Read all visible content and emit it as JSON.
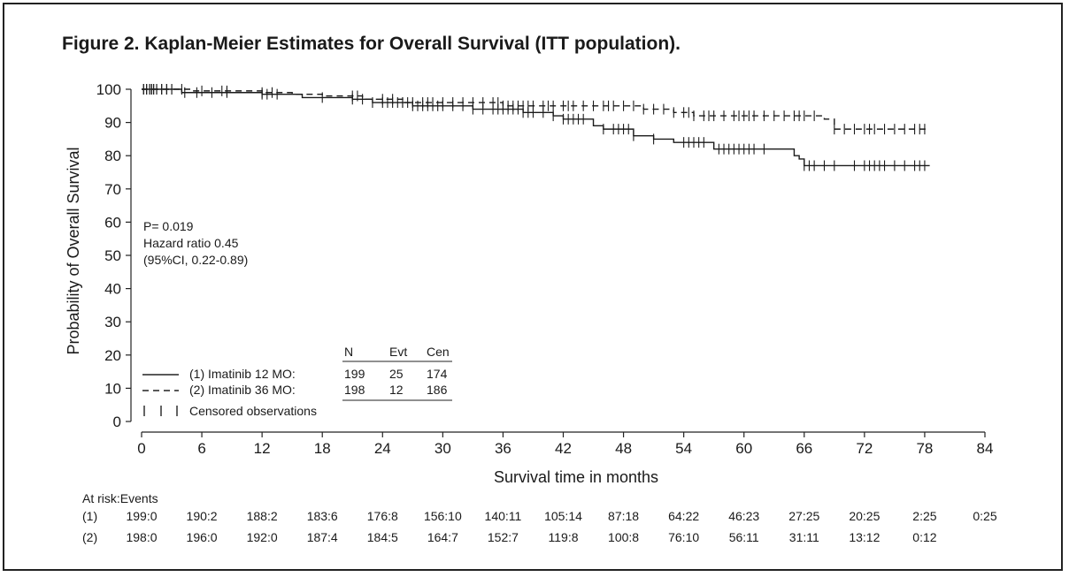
{
  "title": "Figure 2. Kaplan-Meier Estimates for Overall Survival (ITT population).",
  "stats": {
    "p_value": "P= 0.019",
    "hazard_ratio": "Hazard ratio 0.45",
    "ci": "(95%CI, 0.22-0.89)"
  },
  "legend": {
    "headers": [
      "N",
      "Evt",
      "Cen"
    ],
    "rows": [
      {
        "label": "(1)  Imatinib 12 MO:",
        "line_style": "solid",
        "N": "199",
        "Evt": "25",
        "Cen": "174"
      },
      {
        "label": "(2)  Imatinib 36 MO:",
        "line_style": "dashed",
        "N": "198",
        "Evt": "12",
        "Cen": "186"
      }
    ],
    "censor_label": "Censored observations"
  },
  "at_risk": {
    "header": "At risk:Events",
    "rows": [
      {
        "label": "(1)",
        "values": [
          "199:0",
          "190:2",
          "188:2",
          "183:6",
          "176:8",
          "156:10",
          "140:11",
          "105:14",
          "87:18",
          "64:22",
          "46:23",
          "27:25",
          "20:25",
          "2:25",
          "0:25"
        ]
      },
      {
        "label": "(2)",
        "values": [
          "198:0",
          "196:0",
          "192:0",
          "187:4",
          "184:5",
          "164:7",
          "152:7",
          "119:8",
          "100:8",
          "76:10",
          "56:11",
          "31:11",
          "13:12",
          "0:12"
        ]
      }
    ]
  },
  "chart_data": {
    "type": "line",
    "subtype": "kaplan-meier step",
    "xlabel": "Survival time in months",
    "ylabel": "Probability of Overall Survival",
    "xlim": [
      0,
      84
    ],
    "ylim": [
      0,
      100
    ],
    "xticks": [
      0,
      6,
      12,
      18,
      24,
      30,
      36,
      42,
      48,
      54,
      60,
      66,
      72,
      78,
      84
    ],
    "yticks": [
      0,
      10,
      20,
      30,
      40,
      50,
      60,
      70,
      80,
      90,
      100
    ],
    "grid": false,
    "series": [
      {
        "name": "(1)  Imatinib 12 MO:",
        "line_style": "solid",
        "steps": [
          [
            0,
            100
          ],
          [
            4,
            99
          ],
          [
            12,
            98.5
          ],
          [
            16,
            97.5
          ],
          [
            21,
            97
          ],
          [
            23,
            96
          ],
          [
            27,
            95
          ],
          [
            33,
            94
          ],
          [
            38,
            93
          ],
          [
            41,
            92
          ],
          [
            42,
            91
          ],
          [
            45,
            89
          ],
          [
            46,
            88
          ],
          [
            49,
            86
          ],
          [
            51,
            85
          ],
          [
            53,
            84
          ],
          [
            57,
            82
          ],
          [
            65,
            80
          ],
          [
            65.5,
            79
          ],
          [
            66,
            77
          ],
          [
            78.5,
            77
          ]
        ],
        "censored": [
          0.2,
          0.5,
          0.8,
          1,
          1.2,
          1.5,
          2,
          2.5,
          3,
          4.3,
          5.5,
          7,
          8.5,
          12,
          12.5,
          13.5,
          18,
          21,
          22,
          23,
          24,
          24.5,
          25,
          25.5,
          26,
          26.5,
          27,
          27.5,
          28,
          28.5,
          29,
          29.5,
          30,
          31,
          32,
          33,
          34,
          35,
          35.5,
          36,
          36.5,
          37,
          37.5,
          38,
          38.5,
          39,
          40,
          41,
          42,
          42.5,
          43,
          43.5,
          44,
          46,
          47,
          47.5,
          48,
          48.5,
          49,
          51,
          54,
          54.5,
          55,
          55.5,
          56,
          57.5,
          58,
          58.5,
          59,
          59.5,
          60,
          60.5,
          61,
          62,
          66,
          66.5,
          67,
          68,
          69,
          71,
          72,
          72.5,
          73,
          73.5,
          74,
          75,
          76,
          77,
          77.5,
          78
        ]
      },
      {
        "name": "(2)  Imatinib 36 MO:",
        "line_style": "dashed",
        "steps": [
          [
            0,
            100
          ],
          [
            5,
            99.5
          ],
          [
            12,
            99
          ],
          [
            15,
            98.5
          ],
          [
            18,
            98
          ],
          [
            22,
            97
          ],
          [
            26,
            96
          ],
          [
            36,
            95
          ],
          [
            44,
            95
          ],
          [
            50,
            94
          ],
          [
            53,
            93
          ],
          [
            55,
            92
          ],
          [
            58,
            92
          ],
          [
            61,
            92
          ],
          [
            68,
            91
          ],
          [
            69,
            88
          ],
          [
            78.5,
            88
          ]
        ],
        "censored": [
          0.2,
          0.5,
          0.8,
          1,
          1.2,
          1.5,
          2,
          2.5,
          3,
          4,
          6,
          8,
          8.5,
          12,
          13,
          21,
          21.5,
          24,
          25,
          26,
          27,
          28,
          28.5,
          29,
          30,
          31,
          32,
          33,
          34,
          35,
          35.5,
          36,
          36.5,
          37,
          37.5,
          38,
          38.5,
          39,
          40,
          40.5,
          41,
          42,
          42.5,
          43,
          44,
          45,
          46,
          46.5,
          47,
          48,
          49,
          50,
          51,
          52,
          53,
          54,
          54.5,
          55,
          56,
          56.5,
          57,
          58,
          59,
          59.5,
          60,
          60.5,
          61,
          62,
          63,
          64,
          65,
          65.5,
          66,
          67,
          69,
          70,
          71,
          72,
          72.5,
          73,
          74,
          75,
          76,
          77,
          77.5,
          78
        ]
      }
    ]
  }
}
